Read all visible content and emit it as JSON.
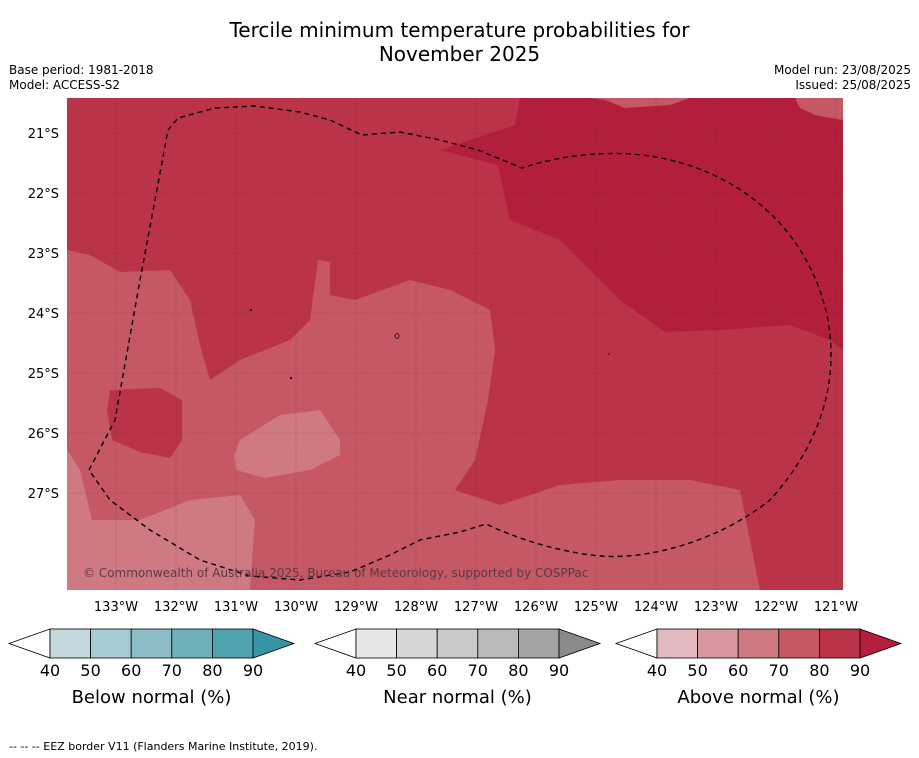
{
  "title_line1": "Tercile minimum temperature probabilities for",
  "title_line2": "November 2025",
  "meta_left": {
    "base_period": "Base period: 1981-2018",
    "model": "Model: ACCESS-S2"
  },
  "meta_right": {
    "model_run": "Model run: 23/08/2025",
    "issued": "Issued: 25/08/2025"
  },
  "map": {
    "lat_labels": [
      "21°S",
      "22°S",
      "23°S",
      "24°S",
      "25°S",
      "26°S",
      "27°S"
    ],
    "lon_labels": [
      "133°W",
      "132°W",
      "131°W",
      "130°W",
      "129°W",
      "128°W",
      "127°W",
      "126°W",
      "125°W",
      "124°W",
      "123°W",
      "122°W",
      "121°W"
    ],
    "copyright": "© Commonwealth of Australia 2025, Bureau of Meteorology, supported by COSPPac"
  },
  "colorbars": [
    {
      "label": "Below normal (%)",
      "ticks": [
        "40",
        "50",
        "60",
        "70",
        "80",
        "90"
      ],
      "colors": [
        "#c2d8dd",
        "#a7cbd2",
        "#8cbdc6",
        "#6fb0bd",
        "#4fa2b0",
        "#3694a5"
      ]
    },
    {
      "label": "Near normal (%)",
      "ticks": [
        "40",
        "50",
        "60",
        "70",
        "80",
        "90"
      ],
      "colors": [
        "#e6e6e6",
        "#d6d6d6",
        "#c9c9c9",
        "#b9b9b9",
        "#a3a3a3",
        "#8a8a8a"
      ]
    },
    {
      "label": "Above normal (%)",
      "ticks": [
        "40",
        "50",
        "60",
        "70",
        "80",
        "90"
      ],
      "colors": [
        "#e3b9c0",
        "#d8969f",
        "#cf7982",
        "#c65866",
        "#bb3349",
        "#b21e3b"
      ]
    }
  ],
  "colors": {
    "p50_60": "#cf7982",
    "p60_70": "#c65866",
    "p70_80": "#bb3349",
    "p80_90": "#b21e3b"
  },
  "footer": "--  --  -- EEZ border V11 (Flanders Marine Institute, 2019)."
}
